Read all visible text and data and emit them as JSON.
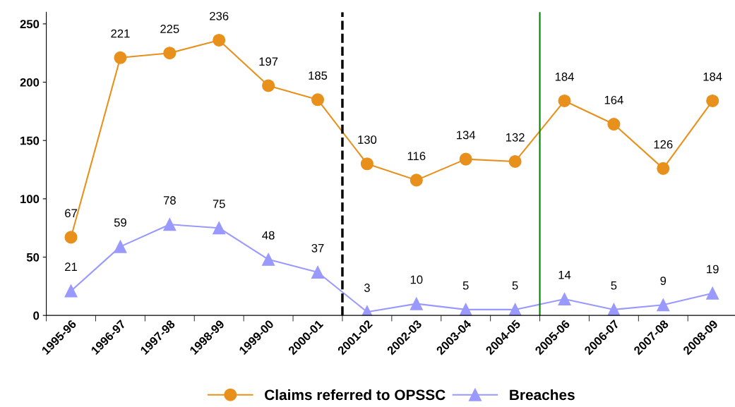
{
  "chart_data": {
    "type": "line",
    "categories": [
      "1995-96",
      "1996-97",
      "1997-98",
      "1998-99",
      "1999-00",
      "2000-01",
      "2001-02",
      "2002-03",
      "2003-04",
      "2004-05",
      "2005-06",
      "2006-07",
      "2007-08",
      "2008-09"
    ],
    "series": [
      {
        "name": "Claims referred to OPSSC",
        "color": "#e8901c",
        "marker": "circle",
        "values": [
          67,
          221,
          225,
          236,
          197,
          185,
          130,
          116,
          134,
          132,
          184,
          164,
          126,
          184
        ]
      },
      {
        "name": "Breaches",
        "color": "#9999ff",
        "marker": "triangle",
        "values": [
          21,
          59,
          78,
          75,
          48,
          37,
          3,
          10,
          5,
          5,
          14,
          5,
          9,
          19
        ]
      }
    ],
    "ylim": [
      0,
      260
    ],
    "yticks": [
      0,
      50,
      100,
      150,
      200,
      250
    ],
    "grid": false,
    "legend": "bottom",
    "data_labels": true,
    "line_style": "solid",
    "ref_lines": [
      {
        "axis": "x",
        "value": "2001-02",
        "color": "#000000",
        "line_style": "dashed"
      },
      {
        "axis": "x",
        "value": "2005-06",
        "color": "#008000",
        "line_style": "solid"
      }
    ]
  }
}
